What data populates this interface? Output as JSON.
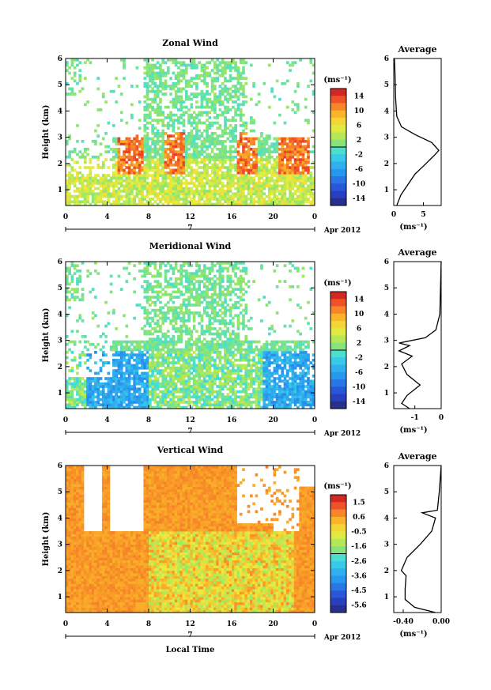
{
  "chart_data": [
    {
      "type": "heatmap",
      "title": "Zonal Wind",
      "ylabel": "Height (km)",
      "xlabel": "",
      "x_ticks": [
        "0",
        "4",
        "8",
        "12",
        "16",
        "20",
        "0"
      ],
      "x_range": [
        0,
        24
      ],
      "y_ticks": [
        "1",
        "2",
        "3",
        "4",
        "5",
        "6"
      ],
      "y_range": [
        0.4,
        6
      ],
      "day_label": "7",
      "date_label": "Apr 2012",
      "colorbar": {
        "unit": "(ms⁻¹)",
        "ticks": [
          "14",
          "10",
          "6",
          "2",
          "-2",
          "-6",
          "-10",
          "-14"
        ],
        "range": [
          -16,
          16
        ]
      },
      "profile": {
        "title": "Average",
        "xlabel": "(ms⁻¹)",
        "x_ticks": [
          "0",
          "5"
        ],
        "x_range": [
          0,
          8
        ],
        "y_ticks": [
          "1",
          "2",
          "3",
          "4",
          "5",
          "6"
        ],
        "y_range": [
          0.4,
          6
        ],
        "points": [
          [
            0.5,
            0.4
          ],
          [
            1.2,
            0.8
          ],
          [
            2.4,
            1.2
          ],
          [
            3.6,
            1.6
          ],
          [
            5.0,
            1.9
          ],
          [
            6.8,
            2.3
          ],
          [
            7.6,
            2.5
          ],
          [
            6.4,
            2.8
          ],
          [
            3.6,
            3.1
          ],
          [
            1.3,
            3.4
          ],
          [
            0.5,
            3.8
          ],
          [
            0.3,
            4.5
          ],
          [
            0.2,
            5.5
          ],
          [
            0.1,
            6.0
          ]
        ]
      }
    },
    {
      "type": "heatmap",
      "title": "Meridional Wind",
      "ylabel": "Height (km)",
      "xlabel": "",
      "x_ticks": [
        "0",
        "4",
        "8",
        "12",
        "16",
        "20",
        "0"
      ],
      "x_range": [
        0,
        24
      ],
      "y_ticks": [
        "1",
        "2",
        "3",
        "4",
        "5",
        "6"
      ],
      "y_range": [
        0.4,
        6
      ],
      "day_label": "7",
      "date_label": "Apr 2012",
      "colorbar": {
        "unit": "(ms⁻¹)",
        "ticks": [
          "14",
          "10",
          "6",
          "2",
          "-2",
          "-6",
          "-10",
          "-14"
        ],
        "range": [
          -16,
          16
        ]
      },
      "profile": {
        "title": "Average",
        "xlabel": "(ms⁻¹)",
        "x_ticks": [
          "-1",
          "0"
        ],
        "x_range": [
          -1.8,
          0
        ],
        "y_ticks": [
          "1",
          "2",
          "3",
          "4",
          "5",
          "6"
        ],
        "y_range": [
          0.4,
          6
        ],
        "points": [
          [
            -1.2,
            0.4
          ],
          [
            -1.5,
            0.6
          ],
          [
            -1.3,
            0.9
          ],
          [
            -0.8,
            1.3
          ],
          [
            -1.3,
            1.7
          ],
          [
            -1.5,
            2.1
          ],
          [
            -1.1,
            2.4
          ],
          [
            -1.6,
            2.6
          ],
          [
            -1.2,
            2.8
          ],
          [
            -1.6,
            2.9
          ],
          [
            -0.6,
            3.1
          ],
          [
            -0.2,
            3.4
          ],
          [
            -0.05,
            4.0
          ],
          [
            0,
            6.0
          ]
        ]
      }
    },
    {
      "type": "heatmap",
      "title": "Vertical Wind",
      "ylabel": "Height (km)",
      "xlabel": "Local Time",
      "x_ticks": [
        "0",
        "4",
        "8",
        "12",
        "16",
        "20",
        "0"
      ],
      "x_range": [
        0,
        24
      ],
      "y_ticks": [
        "1",
        "2",
        "3",
        "4",
        "5",
        "6"
      ],
      "y_range": [
        0.4,
        6
      ],
      "day_label": "7",
      "date_label": "Apr 2012",
      "colorbar": {
        "unit": "(ms⁻¹)",
        "ticks": [
          "1.5",
          "0.6",
          "-0.5",
          "-1.6",
          "-2.6",
          "-3.6",
          "-4.5",
          "-5.6"
        ],
        "range": [
          -6,
          2
        ]
      },
      "profile": {
        "title": "Average",
        "xlabel": "(ms⁻¹)",
        "x_ticks": [
          "-0.40",
          "0.00"
        ],
        "x_range": [
          -0.5,
          0
        ],
        "y_ticks": [
          "1",
          "2",
          "3",
          "4",
          "5",
          "6"
        ],
        "y_range": [
          0.4,
          6
        ],
        "points": [
          [
            -0.06,
            0.4
          ],
          [
            -0.28,
            0.6
          ],
          [
            -0.38,
            0.9
          ],
          [
            -0.38,
            1.3
          ],
          [
            -0.37,
            1.8
          ],
          [
            -0.42,
            2.0
          ],
          [
            -0.36,
            2.5
          ],
          [
            -0.22,
            3.0
          ],
          [
            -0.1,
            3.5
          ],
          [
            -0.06,
            4.0
          ],
          [
            -0.2,
            4.2
          ],
          [
            -0.04,
            4.3
          ],
          [
            -0.02,
            5.0
          ],
          [
            0,
            6.0
          ]
        ]
      }
    }
  ]
}
